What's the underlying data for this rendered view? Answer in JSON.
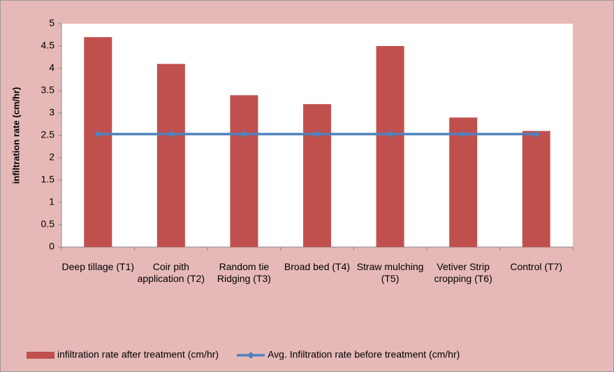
{
  "chart_data": {
    "type": "bar",
    "y_label": "infiltration rate (cm/hr)",
    "categories": [
      "Deep tillage (T1)",
      "Coir pith application (T2)",
      "Random tie Ridging (T3)",
      "Broad bed (T4)",
      "Straw mulching (T5)",
      "Vetiver Strip cropping (T6)",
      "Control (T7)"
    ],
    "series": [
      {
        "name": "infiltration rate after treatment (cm/hr)",
        "type": "bar",
        "color": "#c0504d",
        "values": [
          4.7,
          4.1,
          3.4,
          3.2,
          4.5,
          2.9,
          2.6
        ]
      },
      {
        "name": "Avg. Infiltration rate before treatment (cm/hr)",
        "type": "line",
        "color": "#4f81bd",
        "values": [
          2.53,
          2.53,
          2.53,
          2.53,
          2.53,
          2.53,
          2.53
        ]
      }
    ],
    "ylim": [
      0,
      5
    ],
    "yticks": [
      0,
      0.5,
      1,
      1.5,
      2,
      2.5,
      3,
      3.5,
      4,
      4.5,
      5
    ],
    "legend": "bottom"
  }
}
